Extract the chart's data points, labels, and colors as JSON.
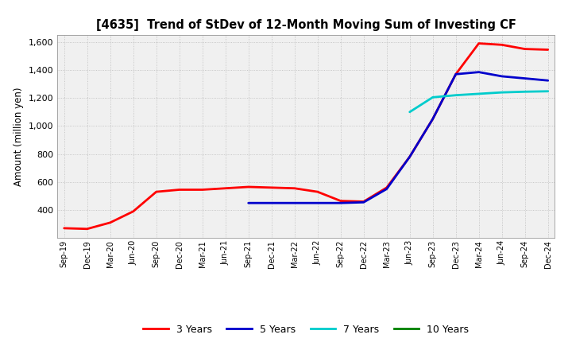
{
  "title": "[4635]  Trend of StDev of 12-Month Moving Sum of Investing CF",
  "ylabel": "Amount (million yen)",
  "ylim": [
    200,
    1650
  ],
  "yticks": [
    400,
    600,
    800,
    1000,
    1200,
    1400,
    1600
  ],
  "plot_bg_color": "#f0f0f0",
  "fig_bg_color": "#ffffff",
  "grid_color": "#bbbbbb",
  "series": {
    "3 Years": {
      "color": "#ff0000",
      "dates": [
        "Sep-19",
        "Dec-19",
        "Mar-20",
        "Jun-20",
        "Sep-20",
        "Dec-20",
        "Mar-21",
        "Jun-21",
        "Sep-21",
        "Dec-21",
        "Mar-22",
        "Jun-22",
        "Sep-22",
        "Dec-22",
        "Mar-23",
        "Jun-23",
        "Sep-23",
        "Dec-23",
        "Mar-24",
        "Jun-24",
        "Sep-24",
        "Dec-24"
      ],
      "values": [
        270,
        265,
        310,
        390,
        530,
        545,
        545,
        555,
        565,
        560,
        555,
        530,
        465,
        460,
        560,
        780,
        1050,
        1370,
        1590,
        1580,
        1550,
        1545
      ]
    },
    "5 Years": {
      "color": "#0000cc",
      "dates": [
        "Sep-21",
        "Dec-21",
        "Mar-22",
        "Jun-22",
        "Sep-22",
        "Dec-22",
        "Mar-23",
        "Jun-23",
        "Sep-23",
        "Dec-23",
        "Mar-24",
        "Jun-24",
        "Sep-24",
        "Dec-24"
      ],
      "values": [
        450,
        450,
        450,
        450,
        450,
        455,
        550,
        780,
        1050,
        1370,
        1385,
        1355,
        1340,
        1325
      ]
    },
    "7 Years": {
      "color": "#00cccc",
      "dates": [
        "Jun-23",
        "Sep-23",
        "Dec-23",
        "Mar-24",
        "Jun-24",
        "Sep-24",
        "Dec-24"
      ],
      "values": [
        1100,
        1205,
        1220,
        1230,
        1240,
        1245,
        1248
      ]
    },
    "10 Years": {
      "color": "#008000",
      "dates": [],
      "values": []
    }
  },
  "x_labels": [
    "Sep-19",
    "Dec-19",
    "Mar-20",
    "Jun-20",
    "Sep-20",
    "Dec-20",
    "Mar-21",
    "Jun-21",
    "Sep-21",
    "Dec-21",
    "Mar-22",
    "Jun-22",
    "Sep-22",
    "Dec-22",
    "Mar-23",
    "Jun-23",
    "Sep-23",
    "Dec-23",
    "Mar-24",
    "Jun-24",
    "Sep-24",
    "Dec-24"
  ],
  "legend": [
    {
      "label": "3 Years",
      "color": "#ff0000"
    },
    {
      "label": "5 Years",
      "color": "#0000cc"
    },
    {
      "label": "7 Years",
      "color": "#00cccc"
    },
    {
      "label": "10 Years",
      "color": "#008000"
    }
  ]
}
